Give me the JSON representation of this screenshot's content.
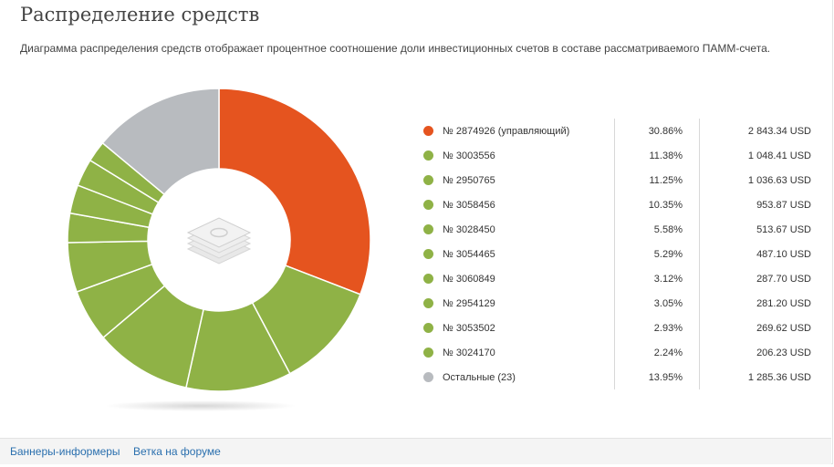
{
  "header": {
    "title": "Распределение средств",
    "description": "Диаграмма распределения средств отображает процентное соотношение доли инвестиционных счетов в составе рассматриваемого ПАММ-счета."
  },
  "colors": {
    "orange": "#e5541f",
    "green": "#8fb246",
    "gray": "#b8bbbf"
  },
  "center_icon": "money-stack-icon",
  "chart_data": {
    "type": "pie",
    "title": "Распределение средств",
    "unit_amount": "USD",
    "slices": [
      {
        "label": "№ 2874926 (управляющий)",
        "percent": 30.86,
        "pct_label": "30.86%",
        "amount": "2 843.34 USD",
        "color": "#e5541f"
      },
      {
        "label": "№ 3003556",
        "percent": 11.38,
        "pct_label": "11.38%",
        "amount": "1 048.41 USD",
        "color": "#8fb246"
      },
      {
        "label": "№ 2950765",
        "percent": 11.25,
        "pct_label": "11.25%",
        "amount": "1 036.63 USD",
        "color": "#8fb246"
      },
      {
        "label": "№ 3058456",
        "percent": 10.35,
        "pct_label": "10.35%",
        "amount": "953.87 USD",
        "color": "#8fb246"
      },
      {
        "label": "№ 3028450",
        "percent": 5.58,
        "pct_label": "5.58%",
        "amount": "513.67 USD",
        "color": "#8fb246"
      },
      {
        "label": "№ 3054465",
        "percent": 5.29,
        "pct_label": "5.29%",
        "amount": "487.10 USD",
        "color": "#8fb246"
      },
      {
        "label": "№ 3060849",
        "percent": 3.12,
        "pct_label": "3.12%",
        "amount": "287.70 USD",
        "color": "#8fb246"
      },
      {
        "label": "№ 2954129",
        "percent": 3.05,
        "pct_label": "3.05%",
        "amount": "281.20 USD",
        "color": "#8fb246"
      },
      {
        "label": "№ 3053502",
        "percent": 2.93,
        "pct_label": "2.93%",
        "amount": "269.62 USD",
        "color": "#8fb246"
      },
      {
        "label": "№ 3024170",
        "percent": 2.24,
        "pct_label": "2.24%",
        "amount": "206.23 USD",
        "color": "#8fb246"
      },
      {
        "label": "Остальные (23)",
        "percent": 13.95,
        "pct_label": "13.95%",
        "amount": "1 285.36 USD",
        "color": "#b8bbbf"
      }
    ]
  },
  "footer": {
    "links": [
      "Баннеры-информеры",
      "Ветка на форуме"
    ]
  }
}
